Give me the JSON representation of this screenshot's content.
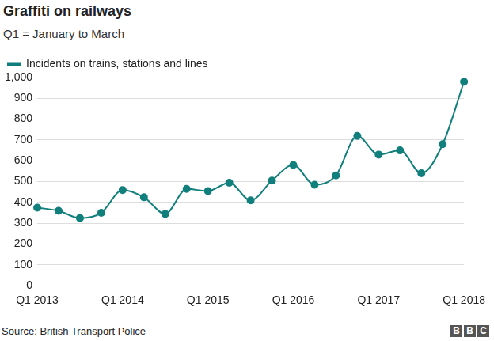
{
  "chart_data": {
    "type": "line",
    "title": "Graffiti on railways",
    "subtitle": "Q1 = January to March",
    "categories": [
      "Q1 2013",
      null,
      null,
      null,
      "Q1 2014",
      null,
      null,
      null,
      "Q1 2015",
      null,
      null,
      null,
      "Q1 2016",
      null,
      null,
      null,
      "Q1 2017",
      null,
      null,
      null,
      "Q1 2018"
    ],
    "series": [
      {
        "name": "Incidents on trains, stations and lines",
        "color": "#117f7c",
        "marker": "circle",
        "values": [
          375,
          360,
          325,
          350,
          460,
          425,
          345,
          465,
          455,
          495,
          410,
          505,
          580,
          485,
          530,
          720,
          630,
          650,
          540,
          680,
          980
        ]
      }
    ],
    "ylim": [
      0,
      1000
    ],
    "yticks": [
      0,
      100,
      200,
      300,
      400,
      500,
      600,
      700,
      800,
      900,
      {
        "value": 1000,
        "label": "1,000"
      }
    ],
    "grid": true,
    "legend": "top-left",
    "source": "Source: British Transport Police",
    "logo": "BBC"
  }
}
